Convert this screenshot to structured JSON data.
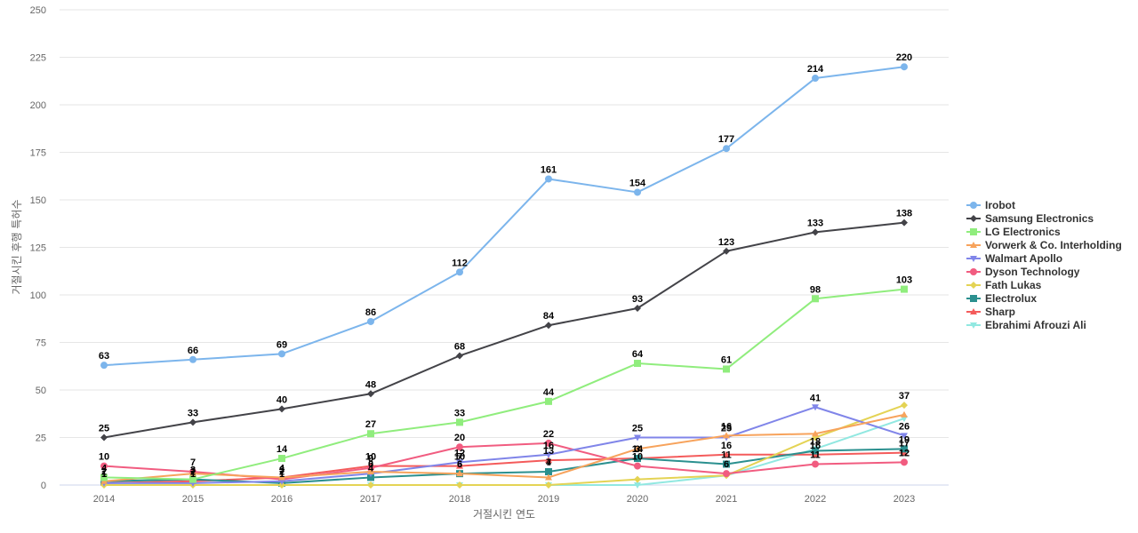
{
  "chart_data": {
    "type": "line",
    "title": "",
    "xlabel": "거절시킨 연도",
    "ylabel": "거절시킨 후행 특허수",
    "x": [
      "2014",
      "2015",
      "2016",
      "2017",
      "2018",
      "2019",
      "2020",
      "2021",
      "2022",
      "2023"
    ],
    "ylim": [
      0,
      250
    ],
    "yticks": [
      0,
      25,
      50,
      75,
      100,
      125,
      150,
      175,
      200,
      225,
      250
    ],
    "grid": true,
    "legend_position": "right",
    "series": [
      {
        "name": "Irobot",
        "color": "#7cb5ec",
        "marker": "circle",
        "show_labels": true,
        "values": [
          63,
          66,
          69,
          86,
          112,
          161,
          154,
          177,
          214,
          220
        ]
      },
      {
        "name": "Samsung Electronics",
        "color": "#434348",
        "marker": "diamond",
        "show_labels": true,
        "values": [
          25,
          33,
          40,
          48,
          68,
          84,
          93,
          123,
          133,
          138
        ]
      },
      {
        "name": "LG Electronics",
        "color": "#90ed7d",
        "marker": "square",
        "show_labels": true,
        "values": [
          4,
          3,
          14,
          27,
          33,
          44,
          64,
          61,
          98,
          103
        ]
      },
      {
        "name": "Vorwerk & Co. Interholding",
        "color": "#f7a35c",
        "marker": "triangle",
        "show_labels": false,
        "values": [
          2,
          6,
          4,
          7,
          6,
          4,
          19,
          26,
          27,
          37
        ]
      },
      {
        "name": "Walmart Apollo",
        "color": "#8085e9",
        "marker": "triangle-down",
        "show_labels": true,
        "values": [
          1,
          1,
          2,
          6,
          12,
          16,
          25,
          25,
          41,
          26
        ]
      },
      {
        "name": "Dyson Technology",
        "color": "#f15c80",
        "marker": "circle",
        "show_labels": true,
        "values": [
          10,
          7,
          3,
          9,
          20,
          22,
          10,
          6,
          11,
          12
        ]
      },
      {
        "name": "Fath Lukas",
        "color": "#e4d354",
        "marker": "diamond",
        "show_labels": false,
        "values": [
          0,
          0,
          0,
          0,
          0,
          0,
          3,
          5,
          25,
          42
        ]
      },
      {
        "name": "Electrolux",
        "color": "#2b908f",
        "marker": "square",
        "show_labels": true,
        "values": [
          2,
          3,
          1,
          4,
          6,
          7,
          14,
          11,
          18,
          19
        ]
      },
      {
        "name": "Sharp",
        "color": "#f45b5b",
        "marker": "triangle",
        "show_labels": true,
        "values": [
          1,
          2,
          4,
          10,
          10,
          13,
          14,
          16,
          16,
          17
        ]
      },
      {
        "name": "Ebrahimi Afrouzi Ali",
        "color": "#91e8e1",
        "marker": "triangle-down",
        "show_labels": false,
        "values": [
          0,
          0,
          0,
          0,
          0,
          0,
          0,
          5,
          19,
          35
        ]
      }
    ],
    "extra_labels": [
      {
        "series": "Walmart Apollo",
        "x": "2017",
        "value": "0"
      },
      {
        "series": "Electrolux",
        "x": "2018",
        "value": "6"
      },
      {
        "series": "Sharp",
        "x": "2018",
        "value": "7"
      },
      {
        "series": "Electrolux",
        "x": "2019",
        "value": "4"
      },
      {
        "series": "Electrolux",
        "x": "2020",
        "value": "3"
      },
      {
        "series": "Vorwerk & Co. Interholding",
        "x": "2021",
        "value": "16"
      },
      {
        "series": "Fath Lukas",
        "x": "2023",
        "value": "37"
      }
    ]
  }
}
